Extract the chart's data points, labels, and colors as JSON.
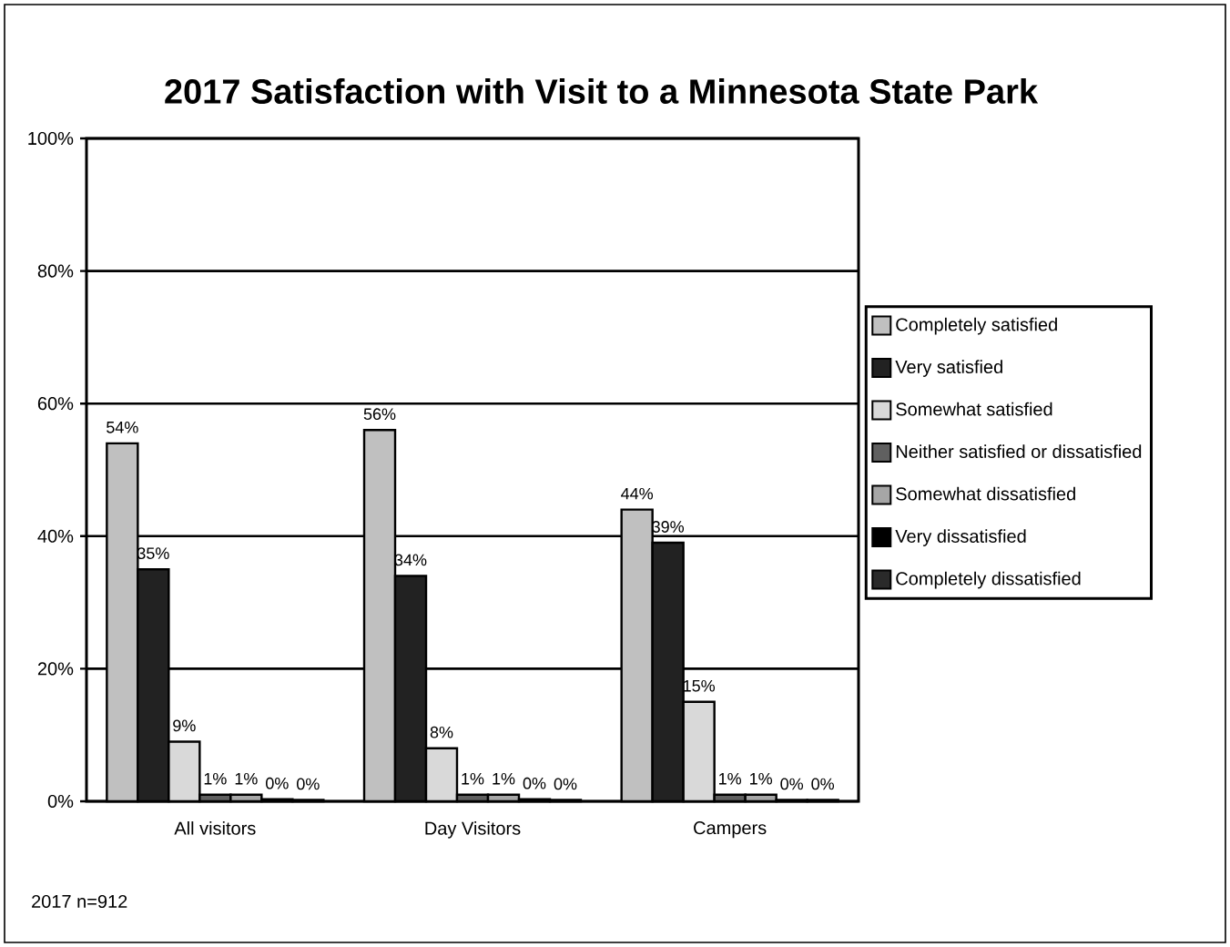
{
  "chart_data": {
    "type": "bar",
    "title": "2017 Satisfaction with Visit to a Minnesota State Park",
    "categories": [
      "All visitors",
      "Day Visitors",
      "Campers"
    ],
    "series": [
      {
        "name": "Completely satisfied",
        "color": "#c0c0c0",
        "values": [
          54,
          56,
          44
        ],
        "value_labels": [
          "54%",
          "56%",
          "44%"
        ]
      },
      {
        "name": "Very satisfied",
        "color": "#222222",
        "values": [
          35,
          34,
          39
        ],
        "value_labels": [
          "35%",
          "34%",
          "39%"
        ]
      },
      {
        "name": "Somewhat satisfied",
        "color": "#d9d9d9",
        "values": [
          9,
          8,
          15
        ],
        "value_labels": [
          "9%",
          "8%",
          "15%"
        ]
      },
      {
        "name": "Neither satisfied or dissatisfied",
        "color": "#606060",
        "values": [
          1,
          1,
          1
        ],
        "value_labels": [
          "1%",
          "1%",
          "1%"
        ]
      },
      {
        "name": "Somewhat dissatisfied",
        "color": "#a6a6a6",
        "values": [
          1,
          1,
          1
        ],
        "value_labels": [
          "1%",
          "1%",
          "1%"
        ]
      },
      {
        "name": "Very dissatisfied",
        "color": "#000000",
        "values": [
          0.3,
          0.3,
          0.2
        ],
        "value_labels": [
          "0%",
          "0%",
          "0%"
        ]
      },
      {
        "name": "Completely dissatisfied",
        "color": "#2a2a2a",
        "values": [
          0.2,
          0.2,
          0.2
        ],
        "value_labels": [
          "0%",
          "0%",
          "0%"
        ]
      }
    ],
    "ylim": [
      0,
      100
    ],
    "yticks": [
      {
        "value": 0,
        "label": "0%"
      },
      {
        "value": 20,
        "label": "20%"
      },
      {
        "value": 40,
        "label": "40%"
      },
      {
        "value": 60,
        "label": "60%"
      },
      {
        "value": 80,
        "label": "80%"
      },
      {
        "value": 100,
        "label": "100%"
      }
    ],
    "grid": "y",
    "legend": "right",
    "annotations": [
      "2017 n=912"
    ]
  }
}
